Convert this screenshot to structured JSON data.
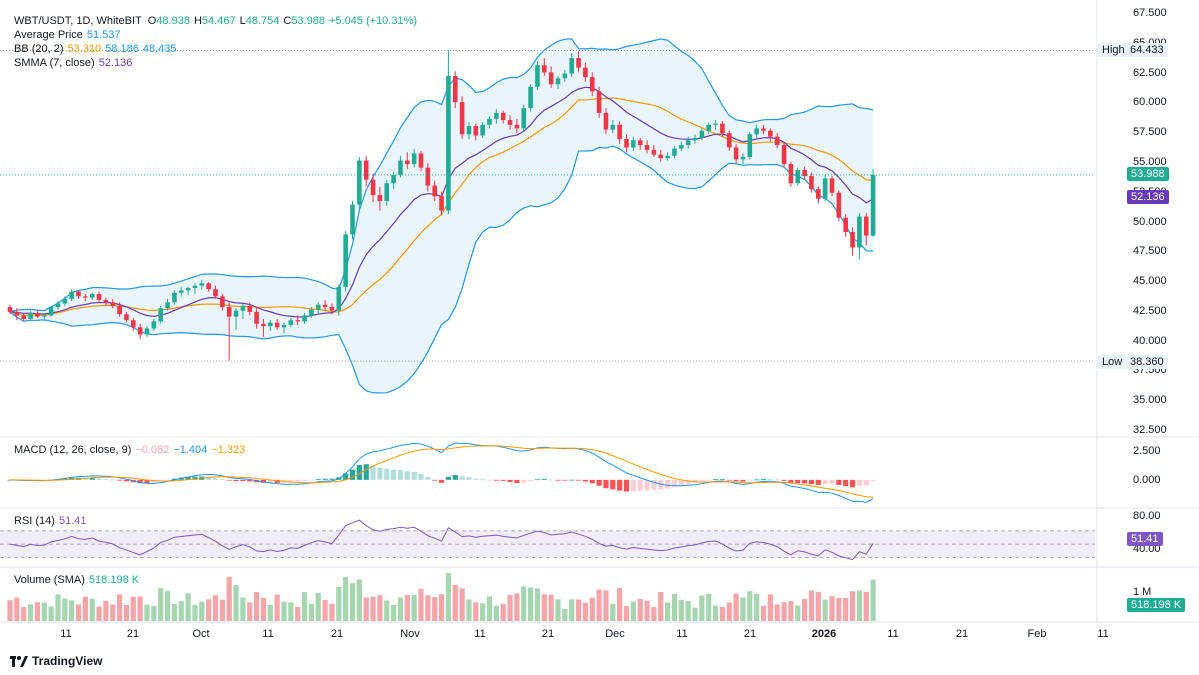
{
  "header": {
    "symbol": "WBT/USDT, 1D, WhiteBIT",
    "o_label": "O",
    "o": "48.938",
    "h_label": "H",
    "h": "54.467",
    "l_label": "L",
    "l": "48.754",
    "c_label": "C",
    "c": "53.988",
    "change": "+5.045 (+10.31%)"
  },
  "indicators": {
    "avg_price": {
      "label": "Average Price",
      "value": "51.537"
    },
    "bb": {
      "label": "BB (20, 2)",
      "basis": "53.310",
      "upper": "58.186",
      "lower": "48.435"
    },
    "smma": {
      "label": "SMMA (7, close)",
      "value": "52.136"
    },
    "macd": {
      "label": "MACD (12, 26, close, 9)",
      "hist": "−0.082",
      "macd": "−1.404",
      "signal": "−1.323"
    },
    "rsi": {
      "label": "RSI (14)",
      "value": "51.41"
    },
    "volume": {
      "label": "Volume (SMA)",
      "value": "518.198 K"
    }
  },
  "price_axis": {
    "ticks": [
      "67.500",
      "65.000",
      "62.500",
      "60.000",
      "57.500",
      "55.000",
      "52.500",
      "50.000",
      "47.500",
      "45.000",
      "42.500",
      "40.000",
      "37.500",
      "35.000",
      "32.500"
    ],
    "high_label": "High",
    "high_value": "64.433",
    "low_label": "Low",
    "low_value": "38.360",
    "last_close_badge": "53.988",
    "smma_badge": "52.136"
  },
  "macd_axis": {
    "ticks": [
      "2.500",
      "0.000"
    ]
  },
  "rsi_axis": {
    "ticks": [
      "80.00",
      "40.00"
    ],
    "badge": "51.41"
  },
  "volume_axis": {
    "ticks": [
      "1 M"
    ],
    "badge": "518.198 K"
  },
  "x_axis": {
    "labels": [
      "11",
      "21",
      "Oct",
      "11",
      "21",
      "Nov",
      "11",
      "21",
      "Dec",
      "11",
      "21",
      "2026",
      "11",
      "21",
      "Feb",
      "11"
    ]
  },
  "brand": {
    "name": "TradingView"
  },
  "colors": {
    "up": "#22ab94",
    "down": "#f23645",
    "bb_fill": "#eaf4fb",
    "bb_line": "#2196f3",
    "basis": "#ff9800",
    "smma": "#673ab7",
    "rsi": "#7e57c2",
    "vol_up": "#a5d6b0",
    "vol_down": "#f5a5a8"
  },
  "chart_data": {
    "type": "candlestick",
    "title": "WBT/USDT, 1D, WhiteBIT",
    "interval": "1D",
    "x_start": "2025-09-02",
    "ylim": [
      32.5,
      67.5
    ],
    "ohlc": [
      [
        42.9,
        43.1,
        42.3,
        42.5
      ],
      [
        42.5,
        42.8,
        41.8,
        42.2
      ],
      [
        42.2,
        42.4,
        41.7,
        41.9
      ],
      [
        41.9,
        42.6,
        41.8,
        42.4
      ],
      [
        42.4,
        42.6,
        42.0,
        42.1
      ],
      [
        42.1,
        42.3,
        41.9,
        42.2
      ],
      [
        42.2,
        43.0,
        42.1,
        42.9
      ],
      [
        42.9,
        43.4,
        42.7,
        43.2
      ],
      [
        43.2,
        43.8,
        43.0,
        43.6
      ],
      [
        43.6,
        44.4,
        43.4,
        44.2
      ],
      [
        44.2,
        44.3,
        43.6,
        43.8
      ],
      [
        43.8,
        44.0,
        43.4,
        43.7
      ],
      [
        43.7,
        44.1,
        43.5,
        44.0
      ],
      [
        44.0,
        44.2,
        43.3,
        43.5
      ],
      [
        43.5,
        43.7,
        43.0,
        43.3
      ],
      [
        43.3,
        43.6,
        42.8,
        43.0
      ],
      [
        43.0,
        43.3,
        42.1,
        42.3
      ],
      [
        42.3,
        42.5,
        41.6,
        41.8
      ],
      [
        41.8,
        42.0,
        40.9,
        41.2
      ],
      [
        41.2,
        41.5,
        40.2,
        40.6
      ],
      [
        40.6,
        41.3,
        40.4,
        41.1
      ],
      [
        41.1,
        41.9,
        40.9,
        41.7
      ],
      [
        41.7,
        43.0,
        41.5,
        42.8
      ],
      [
        42.8,
        43.6,
        42.6,
        43.3
      ],
      [
        43.3,
        44.3,
        43.1,
        44.1
      ],
      [
        44.1,
        44.6,
        43.8,
        44.3
      ],
      [
        44.3,
        44.6,
        43.9,
        44.5
      ],
      [
        44.5,
        44.9,
        44.0,
        44.7
      ],
      [
        44.7,
        45.2,
        44.4,
        44.9
      ],
      [
        44.9,
        45.0,
        44.2,
        44.4
      ],
      [
        44.4,
        44.7,
        43.6,
        43.8
      ],
      [
        43.8,
        44.0,
        42.6,
        42.9
      ],
      [
        42.9,
        43.4,
        38.4,
        42.1
      ],
      [
        42.1,
        42.8,
        41.0,
        42.6
      ],
      [
        42.6,
        43.2,
        41.9,
        43.0
      ],
      [
        43.0,
        43.3,
        42.2,
        42.5
      ],
      [
        42.5,
        42.9,
        41.1,
        41.5
      ],
      [
        41.5,
        41.9,
        40.4,
        41.3
      ],
      [
        41.3,
        41.8,
        40.9,
        41.6
      ],
      [
        41.6,
        41.9,
        41.0,
        41.2
      ],
      [
        41.2,
        41.6,
        40.7,
        41.4
      ],
      [
        41.4,
        42.0,
        41.2,
        41.8
      ],
      [
        41.8,
        42.2,
        41.4,
        41.7
      ],
      [
        41.7,
        42.4,
        41.5,
        42.2
      ],
      [
        42.2,
        42.9,
        42.0,
        42.7
      ],
      [
        42.7,
        43.3,
        42.4,
        43.1
      ],
      [
        43.1,
        43.5,
        42.6,
        42.9
      ],
      [
        42.9,
        43.2,
        42.3,
        42.6
      ],
      [
        42.6,
        44.8,
        42.2,
        44.6
      ],
      [
        44.6,
        49.3,
        44.2,
        49.0
      ],
      [
        49.0,
        51.8,
        48.6,
        51.5
      ],
      [
        51.5,
        55.5,
        51.0,
        55.2
      ],
      [
        55.2,
        55.6,
        53.0,
        53.6
      ],
      [
        53.6,
        54.1,
        51.7,
        52.3
      ],
      [
        52.3,
        53.0,
        51.0,
        51.8
      ],
      [
        51.8,
        53.6,
        51.4,
        53.3
      ],
      [
        53.3,
        54.3,
        52.8,
        54.0
      ],
      [
        54.0,
        55.6,
        53.8,
        55.2
      ],
      [
        55.2,
        55.9,
        54.5,
        54.9
      ],
      [
        54.9,
        56.2,
        54.6,
        55.8
      ],
      [
        55.8,
        56.0,
        54.3,
        54.6
      ],
      [
        54.6,
        55.0,
        52.6,
        53.1
      ],
      [
        53.1,
        53.5,
        51.8,
        52.2
      ],
      [
        52.2,
        52.6,
        50.6,
        51.0
      ],
      [
        51.0,
        64.5,
        50.7,
        62.3
      ],
      [
        62.3,
        62.7,
        59.6,
        60.1
      ],
      [
        60.1,
        60.6,
        57.0,
        57.4
      ],
      [
        57.4,
        58.4,
        57.0,
        58.1
      ],
      [
        58.1,
        58.3,
        56.9,
        57.3
      ],
      [
        57.3,
        58.4,
        57.1,
        58.2
      ],
      [
        58.2,
        58.9,
        57.9,
        58.7
      ],
      [
        58.7,
        59.5,
        58.3,
        59.2
      ],
      [
        59.2,
        59.4,
        58.3,
        58.6
      ],
      [
        58.6,
        59.0,
        57.8,
        58.2
      ],
      [
        58.2,
        58.7,
        57.5,
        57.9
      ],
      [
        57.9,
        59.9,
        57.6,
        59.6
      ],
      [
        59.6,
        61.6,
        59.3,
        61.4
      ],
      [
        61.4,
        63.5,
        61.1,
        63.2
      ],
      [
        63.2,
        63.8,
        62.3,
        62.6
      ],
      [
        62.6,
        63.1,
        61.3,
        61.6
      ],
      [
        61.6,
        62.3,
        61.2,
        62.1
      ],
      [
        62.1,
        62.8,
        61.8,
        62.5
      ],
      [
        62.5,
        64.2,
        62.2,
        63.8
      ],
      [
        63.8,
        64.4,
        62.6,
        63.0
      ],
      [
        63.0,
        63.4,
        61.8,
        62.2
      ],
      [
        62.2,
        62.6,
        60.6,
        61.0
      ],
      [
        61.0,
        61.4,
        58.8,
        59.2
      ],
      [
        59.2,
        59.6,
        57.4,
        57.8
      ],
      [
        57.8,
        58.6,
        57.5,
        58.2
      ],
      [
        58.2,
        58.5,
        56.6,
        57.0
      ],
      [
        57.0,
        57.4,
        55.9,
        56.3
      ],
      [
        56.3,
        57.2,
        56.0,
        56.9
      ],
      [
        56.9,
        57.1,
        56.1,
        56.5
      ],
      [
        56.5,
        56.9,
        55.8,
        56.1
      ],
      [
        56.1,
        56.5,
        55.5,
        55.7
      ],
      [
        55.7,
        56.1,
        55.1,
        55.4
      ],
      [
        55.4,
        55.9,
        55.2,
        55.6
      ],
      [
        55.6,
        56.4,
        55.4,
        56.2
      ],
      [
        56.2,
        56.8,
        56.0,
        56.5
      ],
      [
        56.5,
        57.2,
        56.2,
        56.9
      ],
      [
        56.9,
        57.4,
        56.6,
        57.1
      ],
      [
        57.1,
        57.9,
        56.9,
        57.7
      ],
      [
        57.7,
        58.4,
        57.4,
        58.2
      ],
      [
        58.2,
        58.6,
        57.8,
        58.3
      ],
      [
        58.3,
        58.5,
        57.2,
        57.5
      ],
      [
        57.5,
        57.7,
        56.0,
        56.3
      ],
      [
        56.3,
        56.6,
        55.0,
        55.3
      ],
      [
        55.3,
        55.8,
        54.9,
        55.5
      ],
      [
        55.5,
        57.6,
        55.3,
        57.4
      ],
      [
        57.4,
        58.2,
        57.1,
        57.9
      ],
      [
        57.9,
        58.2,
        57.4,
        57.7
      ],
      [
        57.7,
        57.9,
        56.8,
        57.2
      ],
      [
        57.2,
        57.5,
        56.2,
        56.5
      ],
      [
        56.5,
        56.7,
        54.6,
        54.9
      ],
      [
        54.9,
        55.1,
        53.0,
        53.3
      ],
      [
        53.3,
        54.6,
        53.1,
        54.4
      ],
      [
        54.4,
        54.7,
        53.6,
        53.9
      ],
      [
        53.9,
        54.2,
        52.5,
        52.8
      ],
      [
        52.8,
        53.0,
        51.6,
        52.0
      ],
      [
        52.0,
        54.0,
        51.8,
        53.7
      ],
      [
        53.7,
        53.9,
        52.2,
        52.5
      ],
      [
        52.5,
        52.7,
        50.1,
        50.4
      ],
      [
        50.4,
        50.7,
        48.8,
        49.2
      ],
      [
        49.2,
        49.6,
        47.2,
        47.9
      ],
      [
        47.9,
        50.8,
        46.9,
        50.5
      ],
      [
        50.5,
        50.8,
        48.1,
        48.9
      ],
      [
        48.9,
        54.5,
        48.8,
        54.0
      ]
    ],
    "series": [
      {
        "name": "BB (20, 2) basis",
        "last": 53.31
      },
      {
        "name": "BB upper",
        "last": 58.186
      },
      {
        "name": "BB lower",
        "last": 48.435
      },
      {
        "name": "SMMA (7, close)",
        "last": 52.136
      },
      {
        "name": "Average Price",
        "last": 51.537
      }
    ],
    "high": 64.433,
    "low": 38.36,
    "panes": {
      "macd": {
        "ylim": [
          -2.0,
          3.5
        ],
        "last": {
          "histogram": -0.082,
          "macd": -1.404,
          "signal": -1.323
        }
      },
      "rsi": {
        "ylim": [
          20,
          100
        ],
        "bands": [
          30,
          50,
          70
        ],
        "last": 51.41
      },
      "volume": {
        "unit": "K",
        "sma_last": 518.198
      }
    }
  }
}
